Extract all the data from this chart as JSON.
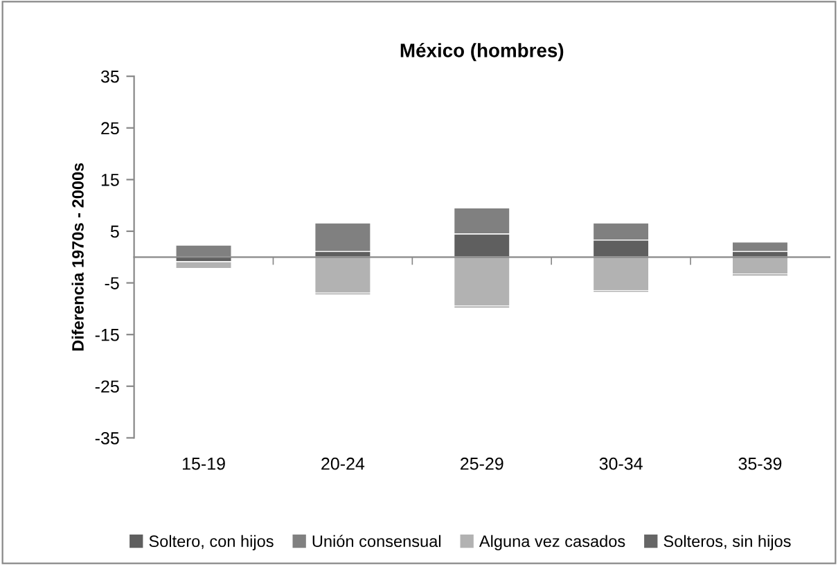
{
  "chart_data": {
    "type": "bar",
    "title": "México (hombres)",
    "ylabel": "Diferencia 1970s - 2000s",
    "categories": [
      "15-19",
      "20-24",
      "25-29",
      "30-34",
      "35-39"
    ],
    "stacked": true,
    "ylim": [
      -35,
      35
    ],
    "yticks": [
      -35,
      -25,
      -15,
      -5,
      5,
      15,
      25,
      35
    ],
    "grid": false,
    "legend": "bottom",
    "series": [
      {
        "name": "Soltero, con hijos",
        "color": "#5f5f5f",
        "values": [
          -0.9,
          1.1,
          4.5,
          3.3,
          1.1
        ]
      },
      {
        "name": "Unión consensual",
        "color": "#808080",
        "values": [
          2.3,
          5.5,
          5.0,
          3.3,
          1.8
        ]
      },
      {
        "name": "Alguna vez casados",
        "color": "#b2b2b2",
        "values": [
          -1.3,
          -7.0,
          -9.5,
          -6.5,
          -3.3
        ]
      },
      {
        "name": "Solteros, sin hijos",
        "color": "#666666",
        "values": [
          null,
          -0.3,
          -0.3,
          -0.3,
          -0.3
        ]
      }
    ]
  }
}
